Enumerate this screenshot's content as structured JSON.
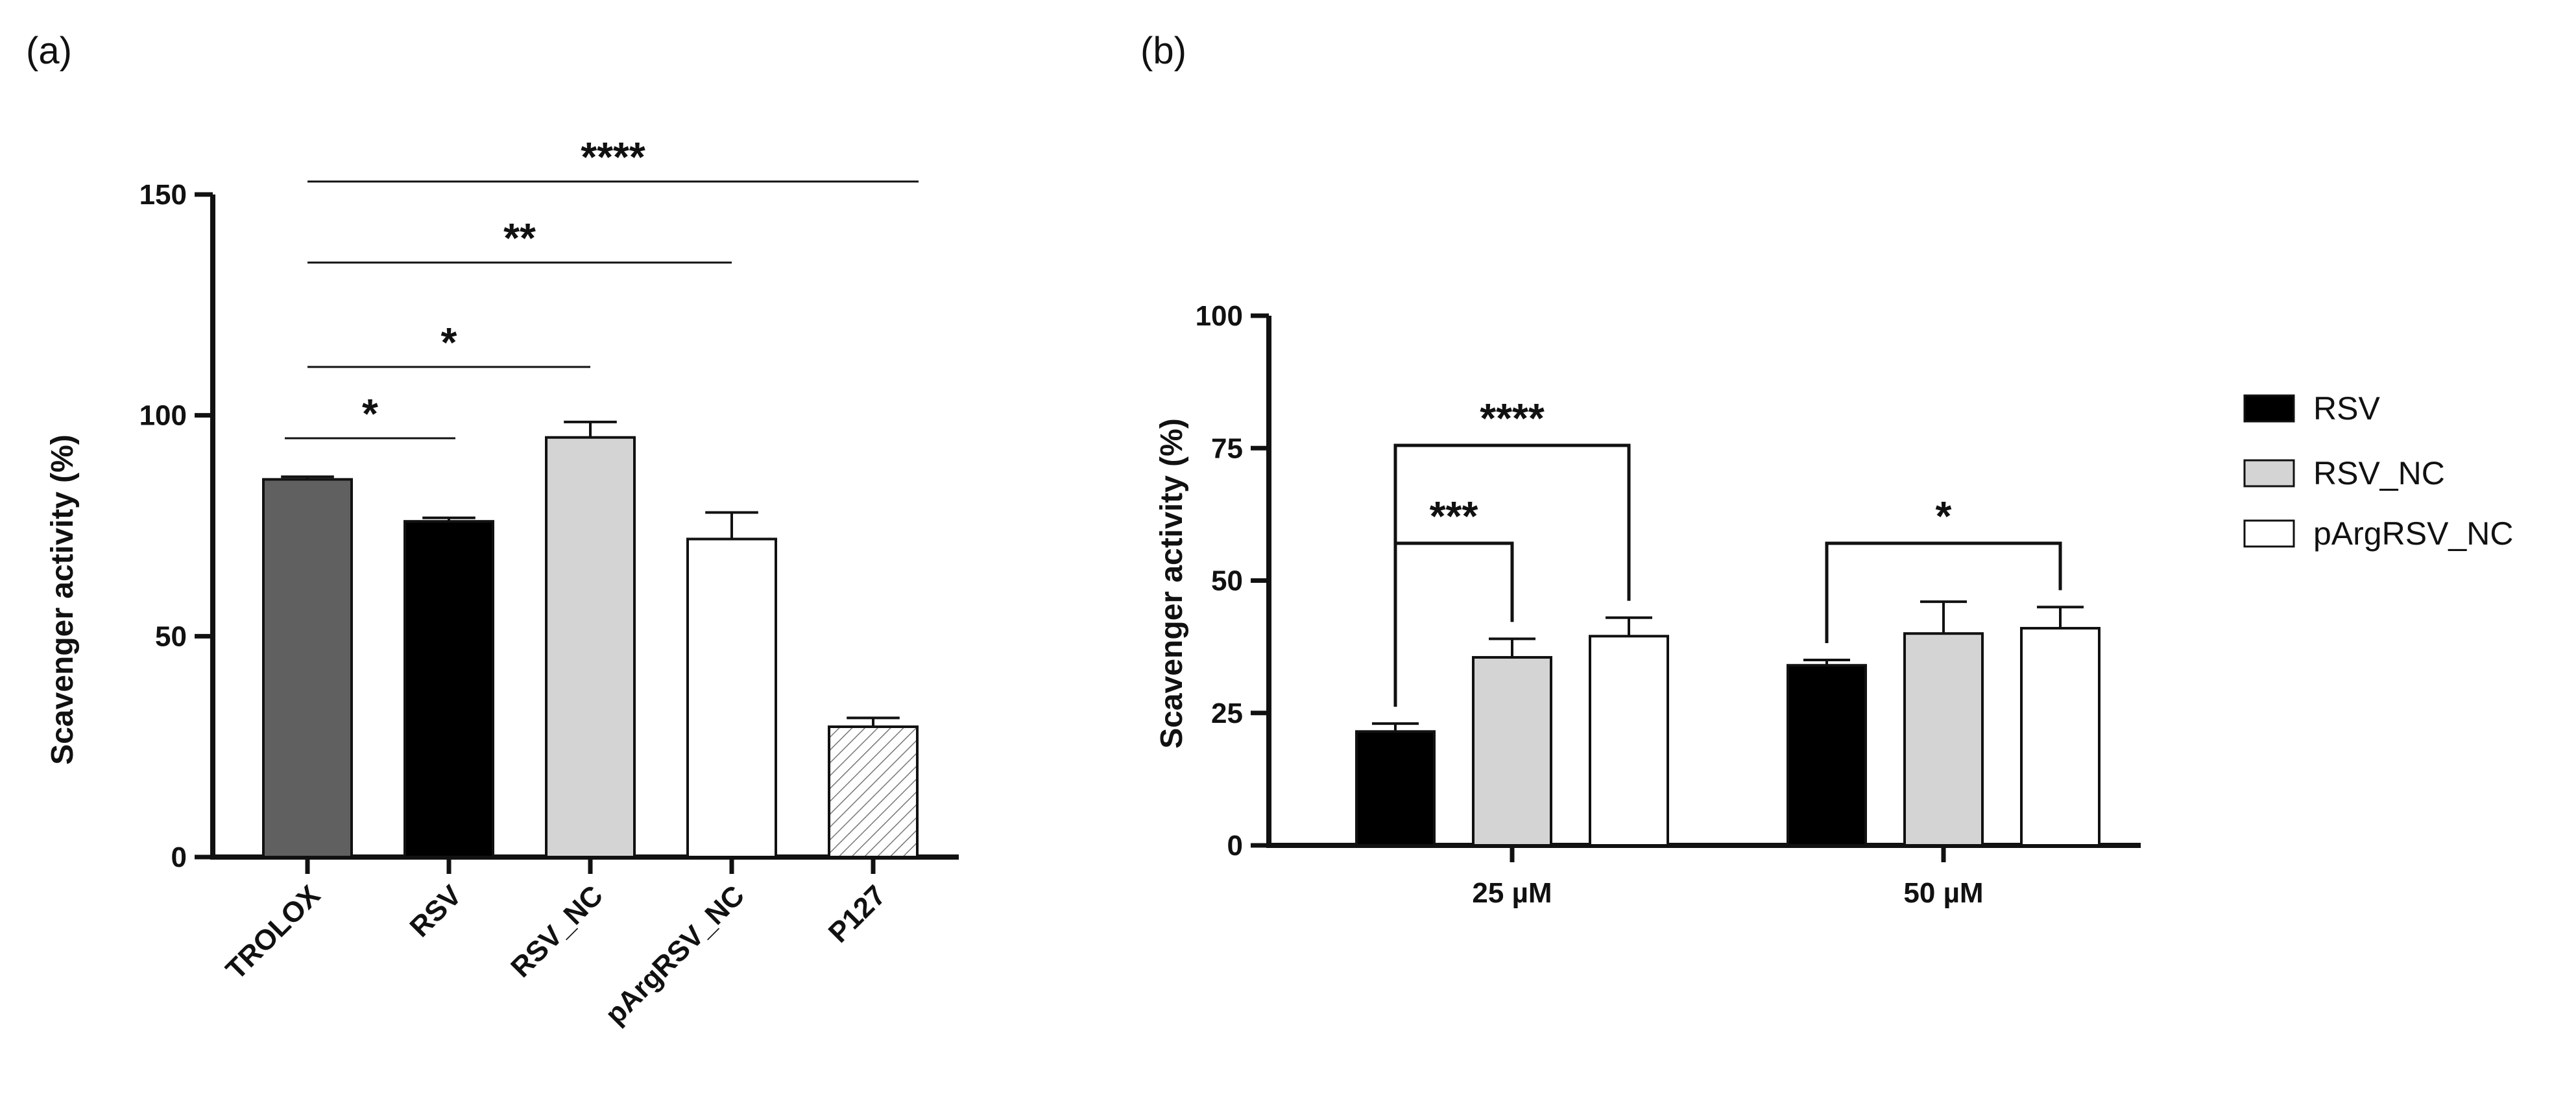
{
  "chart_data": [
    {
      "panel": "(a)",
      "type": "bar",
      "ylabel": "Scavenger activity (%)",
      "ylim": [
        0,
        150
      ],
      "yticks": [
        "0",
        "50",
        "100",
        "150"
      ],
      "categories": [
        "TROLOX",
        "RSV",
        "RSV_NC",
        "pArgRSV_NC",
        "P127"
      ],
      "values": [
        85.5,
        76,
        95,
        72,
        29.5
      ],
      "errors": [
        0.6,
        0.8,
        3.5,
        6,
        2
      ],
      "significance": [
        {
          "from": 0,
          "to": 1,
          "label": "*"
        },
        {
          "from": 0,
          "to": 2,
          "label": "*"
        },
        {
          "from": 0,
          "to": 3,
          "label": "**"
        },
        {
          "from": 0,
          "to": 4,
          "label": "****"
        }
      ]
    },
    {
      "panel": "(b)",
      "type": "bar",
      "ylabel": "Scavenger activity (%)",
      "ylim": [
        0,
        100
      ],
      "yticks": [
        "0",
        "25",
        "50",
        "75",
        "100"
      ],
      "categories": [
        "25 µM",
        "50 µM"
      ],
      "series": [
        {
          "name": "RSV",
          "values": [
            21.5,
            34
          ],
          "errors": [
            1.5,
            1
          ],
          "color": "#000000"
        },
        {
          "name": "RSV_NC",
          "values": [
            35.5,
            40
          ],
          "errors": [
            3.5,
            6
          ],
          "color": "#d4d4d4"
        },
        {
          "name": "pArgRSV_NC",
          "values": [
            39.5,
            41
          ],
          "errors": [
            3.5,
            4
          ],
          "color": "#ffffff"
        }
      ],
      "significance": [
        {
          "group": 0,
          "from": 0,
          "to": 1,
          "label": "***"
        },
        {
          "group": 0,
          "from": 0,
          "to": 2,
          "label": "****"
        },
        {
          "group": 1,
          "from": 0,
          "to": 2,
          "label": "*"
        }
      ]
    }
  ]
}
